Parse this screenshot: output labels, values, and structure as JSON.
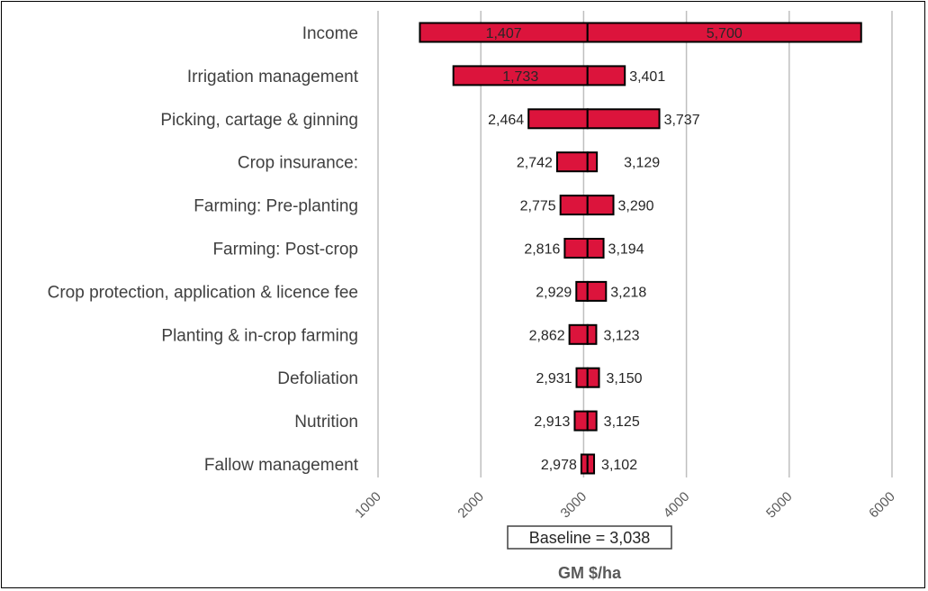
{
  "chart_data": {
    "type": "bar",
    "subtype": "tornado",
    "title": "",
    "xlabel": "GM $/ha",
    "ylabel": "",
    "xlim": [
      1000,
      6000
    ],
    "xticks": [
      "1000",
      "2000",
      "3000",
      "4000",
      "5000",
      "6000"
    ],
    "grid": true,
    "baseline": 3038,
    "baseline_label": "Baseline = 3,038",
    "colors": {
      "bar": "#DC143C",
      "edge": "#000000",
      "grid": "#BFBFBF"
    },
    "categories": [
      "Income",
      "Irrigation management",
      "Picking, cartage & ginning",
      "Crop insurance:",
      "Farming: Pre-planting",
      "Farming: Post-crop",
      "Crop protection, application & licence fee",
      "Planting & in-crop farming",
      "Defoliation",
      "Nutrition",
      "Fallow management"
    ],
    "low": [
      1407,
      1733,
      2464,
      2742,
      2775,
      2816,
      2929,
      2862,
      2931,
      2913,
      2978
    ],
    "high": [
      5700,
      3401,
      3737,
      3129,
      3290,
      3194,
      3218,
      3123,
      3150,
      3125,
      3102
    ],
    "low_labels": [
      "1,407",
      "1,733",
      "2,464",
      "2,742",
      "2,775",
      "2,816",
      "2,929",
      "2,862",
      "2,931",
      "2,913",
      "2,978"
    ],
    "high_labels": [
      "5,700",
      "3,401",
      "3,737",
      "3,129",
      "3,290",
      "3,194",
      "3,218",
      "3,123",
      "3,150",
      "3,125",
      "3,102"
    ]
  }
}
